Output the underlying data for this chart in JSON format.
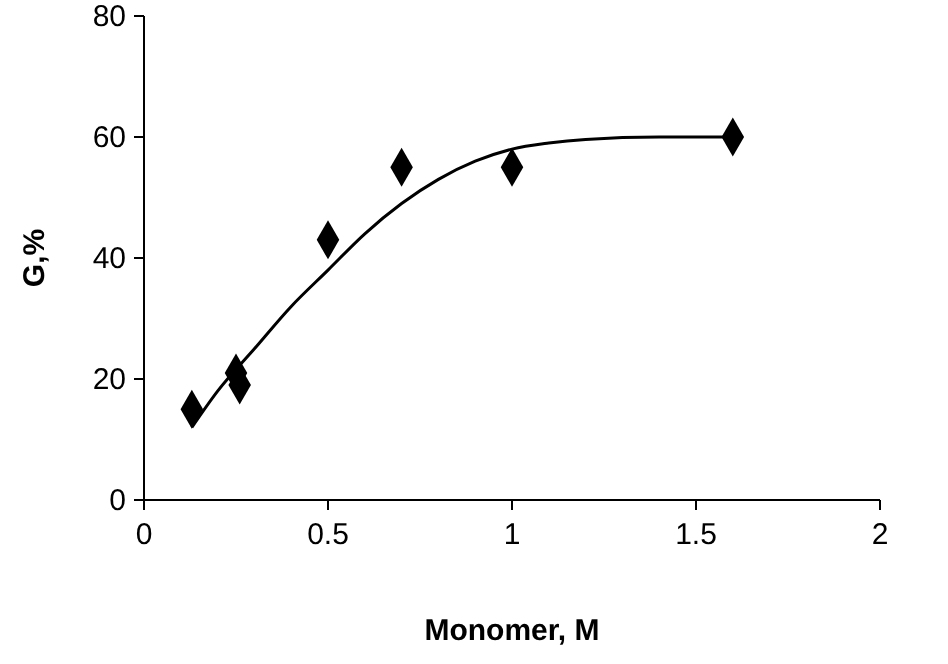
{
  "chart_data": {
    "type": "scatter",
    "xlabel": "Monomer, M",
    "ylabel": "G,%",
    "xlim": [
      0,
      2
    ],
    "ylim": [
      0,
      80
    ],
    "xticks": [
      0,
      0.5,
      1,
      1.5,
      2
    ],
    "yticks": [
      0,
      20,
      40,
      60,
      80
    ],
    "grid": false,
    "marker": "diamond",
    "series": [
      {
        "color": "#000000",
        "x": [
          0.13,
          0.25,
          0.26,
          0.5,
          0.7,
          1.0,
          1.6
        ],
        "values": [
          15,
          21,
          19,
          43,
          55,
          55,
          60
        ]
      },
      {
        "type": "line",
        "color": "#000000",
        "line_style": "solid",
        "marker": "none",
        "x": [
          0.13,
          0.2,
          0.3,
          0.4,
          0.5,
          0.6,
          0.7,
          0.8,
          0.9,
          1.0,
          1.1,
          1.2,
          1.4,
          1.6
        ],
        "values": [
          12,
          18,
          25,
          32,
          38,
          44,
          49,
          53,
          56,
          58,
          59,
          59.6,
          60,
          60
        ]
      }
    ]
  }
}
